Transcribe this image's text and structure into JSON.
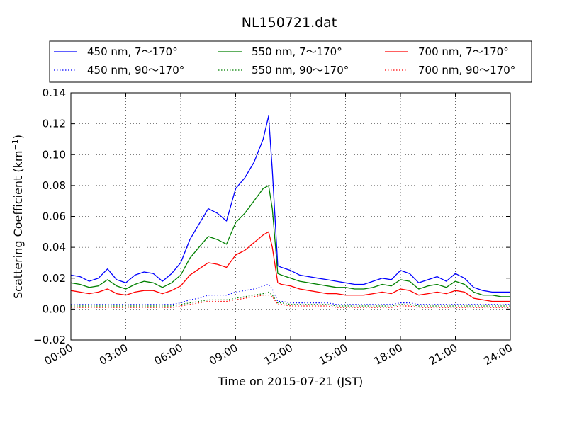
{
  "chart_data": {
    "type": "line",
    "title": "NL150721.dat",
    "xlabel": "Time on 2015-07-21 (JST)",
    "ylabel_main": "Scattering Coefficient (km",
    "ylabel_sup": "−1",
    "ylabel_end": ")",
    "xlim_hours": [
      0,
      24
    ],
    "ylim": [
      -0.02,
      0.14
    ],
    "x_ticks": [
      {
        "hour": 0,
        "label": "00:00"
      },
      {
        "hour": 3,
        "label": "03:00"
      },
      {
        "hour": 6,
        "label": "06:00"
      },
      {
        "hour": 9,
        "label": "09:00"
      },
      {
        "hour": 12,
        "label": "12:00"
      },
      {
        "hour": 15,
        "label": "15:00"
      },
      {
        "hour": 18,
        "label": "18:00"
      },
      {
        "hour": 21,
        "label": "21:00"
      },
      {
        "hour": 24,
        "label": "24:00"
      }
    ],
    "y_ticks": [
      {
        "value": -0.02,
        "label": "−0.02"
      },
      {
        "value": 0.0,
        "label": "0.00"
      },
      {
        "value": 0.02,
        "label": "0.02"
      },
      {
        "value": 0.04,
        "label": "0.04"
      },
      {
        "value": 0.06,
        "label": "0.06"
      },
      {
        "value": 0.08,
        "label": "0.08"
      },
      {
        "value": 0.1,
        "label": "0.10"
      },
      {
        "value": 0.12,
        "label": "0.12"
      },
      {
        "value": 0.14,
        "label": "0.14"
      }
    ],
    "grid": true,
    "legend_placement": "top, above plot, 3 columns",
    "x_hours": [
      0,
      0.5,
      1,
      1.5,
      2,
      2.5,
      3,
      3.5,
      4,
      4.5,
      5,
      5.5,
      6,
      6.5,
      7,
      7.5,
      8,
      8.5,
      9,
      9.5,
      10,
      10.5,
      10.8,
      11,
      11.3,
      11.5,
      12,
      12.5,
      13,
      13.5,
      14,
      14.5,
      15,
      15.5,
      16,
      16.5,
      17,
      17.5,
      18,
      18.5,
      19,
      19.5,
      20,
      20.5,
      21,
      21.5,
      22,
      22.5,
      23,
      23.5,
      24
    ],
    "series": [
      {
        "name": "450 nm, 7～170°",
        "color": "#0000ff",
        "style": "solid",
        "values": [
          0.022,
          0.021,
          0.018,
          0.02,
          0.026,
          0.019,
          0.017,
          0.022,
          0.024,
          0.023,
          0.018,
          0.023,
          0.03,
          0.045,
          0.055,
          0.065,
          0.062,
          0.057,
          0.078,
          0.085,
          0.095,
          0.11,
          0.125,
          0.09,
          0.028,
          0.027,
          0.025,
          0.022,
          0.021,
          0.02,
          0.019,
          0.018,
          0.017,
          0.016,
          0.016,
          0.018,
          0.02,
          0.019,
          0.025,
          0.023,
          0.017,
          0.019,
          0.021,
          0.018,
          0.023,
          0.02,
          0.014,
          0.012,
          0.011,
          0.011,
          0.011
        ]
      },
      {
        "name": "450 nm, 90～170°",
        "color": "#0000ff",
        "style": "dotted",
        "values": [
          0.003,
          0.003,
          0.003,
          0.003,
          0.003,
          0.003,
          0.003,
          0.003,
          0.003,
          0.003,
          0.003,
          0.003,
          0.004,
          0.006,
          0.007,
          0.009,
          0.009,
          0.009,
          0.011,
          0.012,
          0.013,
          0.015,
          0.016,
          0.013,
          0.005,
          0.005,
          0.004,
          0.004,
          0.004,
          0.004,
          0.004,
          0.003,
          0.003,
          0.003,
          0.003,
          0.003,
          0.003,
          0.003,
          0.004,
          0.004,
          0.003,
          0.003,
          0.003,
          0.003,
          0.003,
          0.003,
          0.003,
          0.003,
          0.003,
          0.003,
          0.003
        ]
      },
      {
        "name": "550 nm, 7～170°",
        "color": "#008000",
        "style": "solid",
        "values": [
          0.017,
          0.016,
          0.014,
          0.015,
          0.019,
          0.015,
          0.013,
          0.016,
          0.018,
          0.017,
          0.014,
          0.017,
          0.022,
          0.033,
          0.04,
          0.047,
          0.045,
          0.042,
          0.056,
          0.062,
          0.07,
          0.078,
          0.08,
          0.065,
          0.023,
          0.022,
          0.02,
          0.018,
          0.017,
          0.016,
          0.015,
          0.014,
          0.014,
          0.013,
          0.013,
          0.014,
          0.016,
          0.015,
          0.019,
          0.018,
          0.013,
          0.015,
          0.016,
          0.014,
          0.018,
          0.016,
          0.011,
          0.009,
          0.009,
          0.008,
          0.008
        ]
      },
      {
        "name": "550 nm, 90～170°",
        "color": "#008000",
        "style": "dotted",
        "values": [
          0.002,
          0.002,
          0.002,
          0.002,
          0.002,
          0.002,
          0.002,
          0.002,
          0.002,
          0.002,
          0.002,
          0.002,
          0.003,
          0.004,
          0.005,
          0.006,
          0.006,
          0.006,
          0.007,
          0.008,
          0.009,
          0.01,
          0.011,
          0.009,
          0.004,
          0.004,
          0.003,
          0.003,
          0.003,
          0.003,
          0.003,
          0.002,
          0.002,
          0.002,
          0.002,
          0.002,
          0.002,
          0.002,
          0.003,
          0.003,
          0.002,
          0.002,
          0.002,
          0.002,
          0.002,
          0.002,
          0.002,
          0.002,
          0.002,
          0.002,
          0.002
        ]
      },
      {
        "name": "700 nm, 7～170°",
        "color": "#ff0000",
        "style": "solid",
        "values": [
          0.012,
          0.011,
          0.01,
          0.011,
          0.013,
          0.01,
          0.009,
          0.011,
          0.012,
          0.012,
          0.01,
          0.012,
          0.015,
          0.022,
          0.026,
          0.03,
          0.029,
          0.027,
          0.035,
          0.038,
          0.043,
          0.048,
          0.05,
          0.04,
          0.017,
          0.016,
          0.015,
          0.013,
          0.012,
          0.011,
          0.01,
          0.01,
          0.009,
          0.009,
          0.009,
          0.01,
          0.011,
          0.01,
          0.013,
          0.012,
          0.009,
          0.01,
          0.011,
          0.01,
          0.012,
          0.011,
          0.007,
          0.006,
          0.005,
          0.005,
          0.005
        ]
      },
      {
        "name": "700 nm, 90～170°",
        "color": "#ff0000",
        "style": "dotted",
        "values": [
          0.001,
          0.001,
          0.001,
          0.001,
          0.001,
          0.001,
          0.001,
          0.001,
          0.001,
          0.001,
          0.001,
          0.001,
          0.002,
          0.003,
          0.004,
          0.005,
          0.005,
          0.005,
          0.006,
          0.007,
          0.008,
          0.009,
          0.009,
          0.008,
          0.003,
          0.003,
          0.002,
          0.002,
          0.002,
          0.002,
          0.002,
          0.001,
          0.001,
          0.001,
          0.001,
          0.001,
          0.001,
          0.001,
          0.002,
          0.002,
          0.001,
          0.001,
          0.001,
          0.001,
          0.001,
          0.001,
          0.001,
          0.001,
          0.001,
          0.001,
          0.001
        ]
      }
    ]
  }
}
